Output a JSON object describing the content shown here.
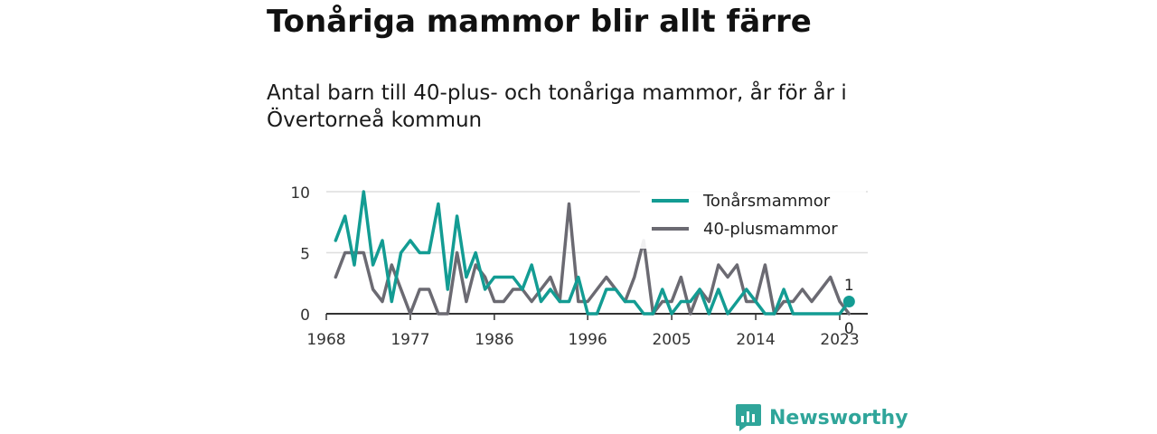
{
  "title": "Tonåriga mammor blir allt färre",
  "subtitle": "Antal barn till 40-plus- och tonåriga mammor, år för år i Övertorneå kommun",
  "brand": {
    "name": "Newsworthy",
    "icon": "newsworthy-logo-icon",
    "color": "#2fa59a"
  },
  "chart_data": {
    "type": "line",
    "x": [
      1969,
      1970,
      1971,
      1972,
      1973,
      1974,
      1975,
      1976,
      1977,
      1978,
      1979,
      1980,
      1981,
      1982,
      1983,
      1984,
      1985,
      1986,
      1987,
      1988,
      1989,
      1990,
      1991,
      1992,
      1993,
      1994,
      1995,
      1996,
      1997,
      1998,
      1999,
      2000,
      2001,
      2002,
      2003,
      2004,
      2005,
      2006,
      2007,
      2008,
      2009,
      2010,
      2011,
      2012,
      2013,
      2014,
      2015,
      2016,
      2017,
      2018,
      2019,
      2020,
      2021,
      2022,
      2023,
      2024
    ],
    "series": [
      {
        "name": "Tonårsmammor",
        "color": "#139c93",
        "values": [
          6,
          8,
          4,
          10,
          4,
          6,
          1,
          5,
          6,
          5,
          5,
          9,
          2,
          8,
          3,
          5,
          2,
          3,
          3,
          3,
          2,
          4,
          1,
          2,
          1,
          1,
          3,
          0,
          0,
          2,
          2,
          1,
          1,
          0,
          0,
          2,
          0,
          1,
          1,
          2,
          0,
          2,
          0,
          1,
          2,
          1,
          0,
          0,
          2,
          0,
          0,
          0,
          0,
          0,
          0,
          1
        ]
      },
      {
        "name": "40-plusmammor",
        "color": "#6b6a72",
        "values": [
          3,
          5,
          5,
          5,
          2,
          1,
          4,
          2,
          0,
          2,
          2,
          0,
          0,
          5,
          1,
          4,
          3,
          1,
          1,
          2,
          2,
          1,
          2,
          3,
          1,
          9,
          1,
          1,
          2,
          3,
          2,
          1,
          3,
          6,
          0,
          1,
          1,
          3,
          0,
          2,
          1,
          4,
          3,
          4,
          1,
          1,
          4,
          0,
          1,
          1,
          2,
          1,
          2,
          3,
          1,
          0
        ]
      }
    ],
    "xticks": [
      "1968",
      "1977",
      "1986",
      "1996",
      "2005",
      "2014",
      "2023"
    ],
    "yticks": [
      "0",
      "5",
      "10"
    ],
    "ylim": [
      0,
      10
    ],
    "end_labels": [
      "1",
      "0"
    ],
    "grid": true,
    "legend": "top-right"
  }
}
